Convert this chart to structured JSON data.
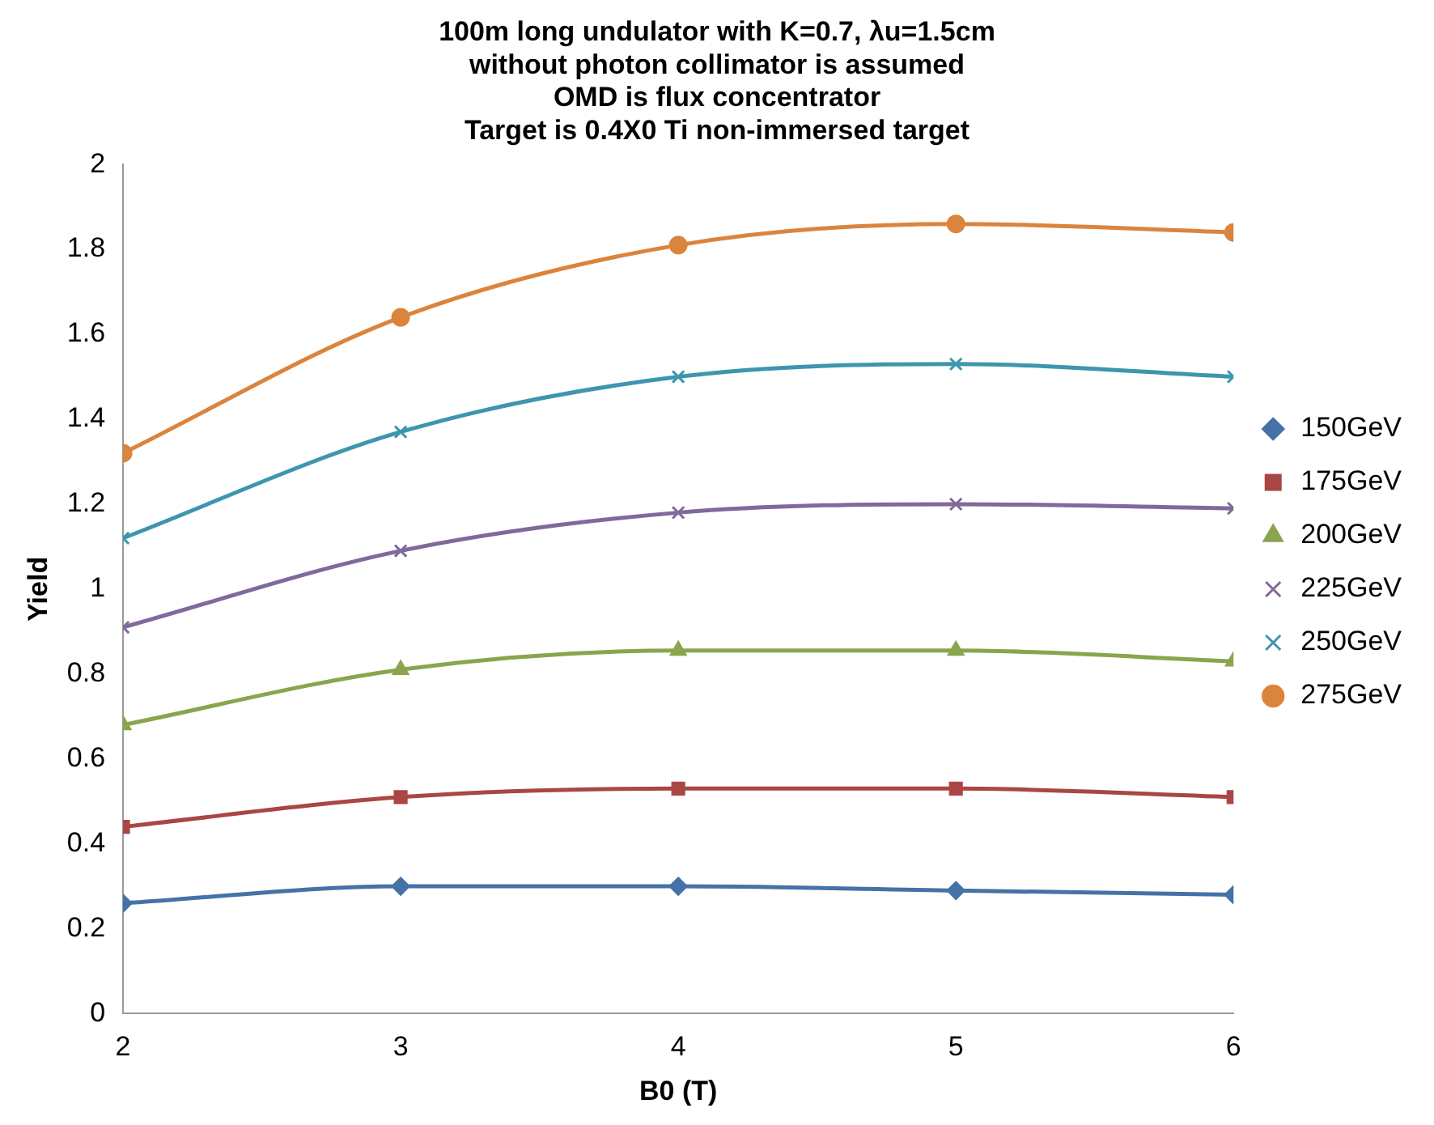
{
  "chart_data": {
    "type": "line",
    "title": [
      "100m long undulator with K=0.7, λu=1.5cm",
      "without photon collimator is assumed",
      "OMD is flux concentrator",
      "Target is 0.4X0 Ti non-immersed target"
    ],
    "xlabel": "B0 (T)",
    "ylabel": "Yield",
    "x": [
      2,
      3,
      4,
      5,
      6
    ],
    "xlim": [
      2,
      6
    ],
    "xticks": [
      2,
      3,
      4,
      5,
      6
    ],
    "ylim": [
      0,
      2
    ],
    "yticks": [
      0,
      0.2,
      0.4,
      0.6,
      0.8,
      1,
      1.2,
      1.4,
      1.6,
      1.8,
      2
    ],
    "grid": false,
    "legend": "right",
    "series": [
      {
        "name": "150GeV",
        "color": "#4572a7",
        "marker": "diamond",
        "values": [
          0.26,
          0.3,
          0.3,
          0.29,
          0.28
        ]
      },
      {
        "name": "175GeV",
        "color": "#aa4643",
        "marker": "square",
        "values": [
          0.44,
          0.51,
          0.53,
          0.53,
          0.51
        ]
      },
      {
        "name": "200GeV",
        "color": "#89a54e",
        "marker": "triangle",
        "values": [
          0.68,
          0.81,
          0.855,
          0.855,
          0.83
        ]
      },
      {
        "name": "225GeV",
        "color": "#80699b",
        "marker": "cross",
        "values": [
          0.91,
          1.09,
          1.18,
          1.2,
          1.19
        ]
      },
      {
        "name": "250GeV",
        "color": "#3d96ae",
        "marker": "cross",
        "values": [
          1.12,
          1.37,
          1.5,
          1.53,
          1.5
        ]
      },
      {
        "name": "275GeV",
        "color": "#db843d",
        "marker": "circle",
        "values": [
          1.32,
          1.64,
          1.81,
          1.86,
          1.84
        ]
      }
    ]
  }
}
